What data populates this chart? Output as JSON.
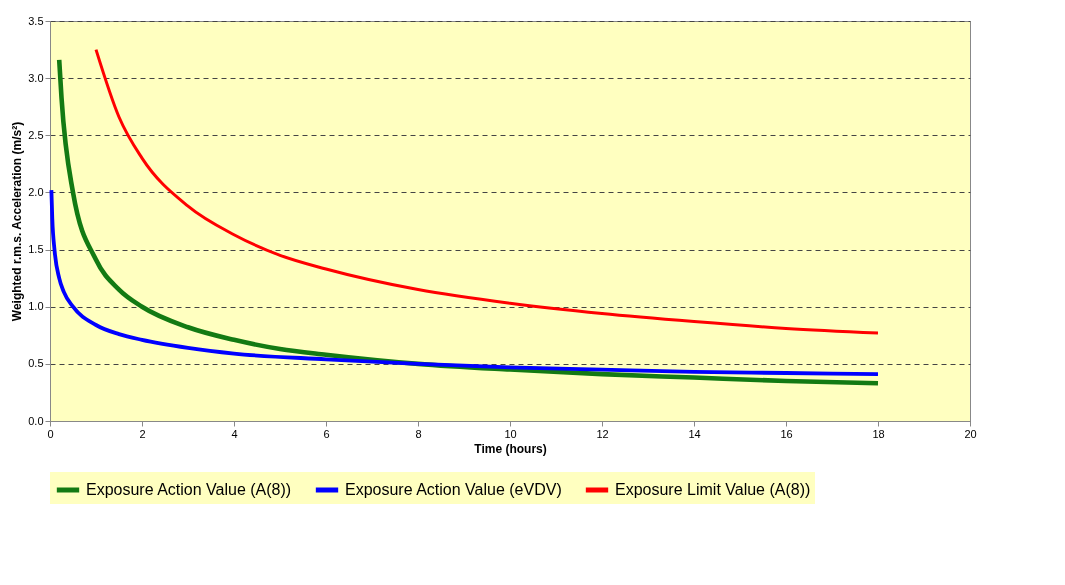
{
  "chart_data": {
    "type": "line",
    "xlabel": "Time (hours)",
    "ylabel": "Weighted r.m.s. Acceleration (m/s²)",
    "xlim": [
      0,
      20
    ],
    "xticks": [
      0,
      2,
      4,
      6,
      8,
      10,
      12,
      14,
      16,
      18,
      20
    ],
    "ylim": [
      0,
      3.5
    ],
    "yticks": [
      {
        "value": 0,
        "label": "0.0"
      },
      {
        "value": 0.5,
        "label": "0.5"
      },
      {
        "value": 1,
        "label": "1.0"
      },
      {
        "value": 1.5,
        "label": "1.5"
      },
      {
        "value": 2,
        "label": "2.0"
      },
      {
        "value": 2.5,
        "label": "2.5"
      },
      {
        "value": 3,
        "label": "3.0"
      },
      {
        "value": 3.5,
        "label": "3.5"
      }
    ],
    "grid": "y",
    "legend": "bottom",
    "marker": "none",
    "line_style": "solid",
    "series": [
      {
        "name": "Exposure Action Value (A(8))",
        "color": "#137a13",
        "x": [
          0.2,
          0.25,
          0.5,
          1,
          1.5,
          2,
          3,
          4,
          5,
          6,
          8,
          10,
          12,
          14,
          16,
          18
        ],
        "values": [
          3.16,
          2.83,
          2.0,
          1.41,
          1.15,
          1.0,
          0.82,
          0.71,
          0.63,
          0.58,
          0.5,
          0.45,
          0.41,
          0.38,
          0.35,
          0.33
        ]
      },
      {
        "name": "Exposure Action Value (eVDV)",
        "color": "#0000ff",
        "x": [
          0.03,
          0.05,
          0.1,
          0.2,
          0.3,
          0.5,
          1,
          1.5,
          2,
          3,
          4,
          6,
          8,
          10,
          12,
          14,
          16,
          18
        ],
        "values": [
          2.02,
          1.77,
          1.49,
          1.25,
          1.13,
          1.0,
          0.84,
          0.76,
          0.71,
          0.64,
          0.59,
          0.54,
          0.5,
          0.47,
          0.45,
          0.43,
          0.42,
          0.41
        ]
      },
      {
        "name": "Exposure Limit Value (A(8))",
        "color": "#ff0000",
        "x": [
          1,
          1.5,
          2,
          3,
          4,
          5,
          6,
          8,
          10,
          12,
          14,
          16,
          18
        ],
        "values": [
          3.25,
          2.66,
          2.3,
          1.88,
          1.63,
          1.45,
          1.33,
          1.15,
          1.03,
          0.94,
          0.87,
          0.81,
          0.77
        ]
      }
    ]
  }
}
